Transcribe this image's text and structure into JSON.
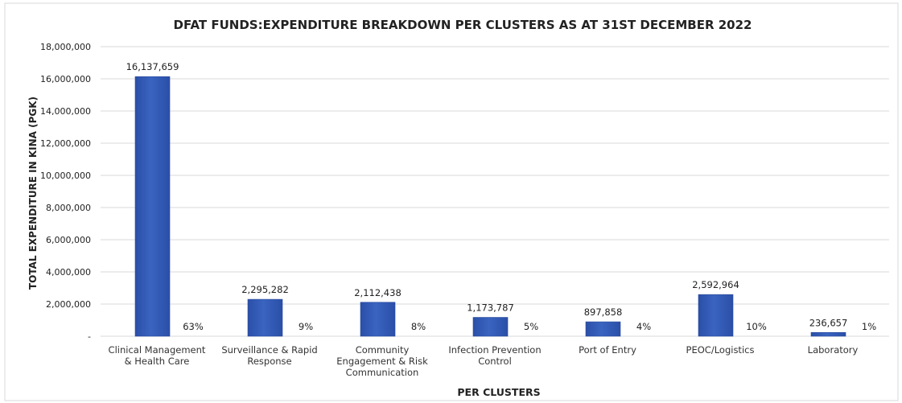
{
  "chart_data": {
    "type": "bar",
    "title": "DFAT FUNDS:EXPENDITURE BREAKDOWN PER CLUSTERS AS AT 31ST DECEMBER 2022",
    "x_label": "PER CLUSTERS",
    "y_label": "TOTAL EXPENDITURE IN KINA (PGK)",
    "categories": [
      "Clinical Management & Health Care",
      "Surveillance & Rapid Response",
      "Community Engagement & Risk Communication",
      "Infection Prevention Control",
      "Port of Entry",
      "PEOC/Logistics",
      "Laboratory"
    ],
    "values": [
      16137659,
      2295282,
      2112438,
      1173787,
      897858,
      2592964,
      236657
    ],
    "value_labels": [
      "16,137,659",
      "2,295,282",
      "2,112,438",
      "1,173,787",
      "897,858",
      "2,592,964",
      "236,657"
    ],
    "shares": [
      {
        "value": 63,
        "label": "63%"
      },
      {
        "value": 9,
        "label": "9%"
      },
      {
        "value": 8,
        "label": "8%"
      },
      {
        "value": 5,
        "label": "5%"
      },
      {
        "value": 4,
        "label": "4%"
      },
      {
        "value": 10,
        "label": "10%"
      },
      {
        "value": 1,
        "label": "1%"
      }
    ],
    "color": "#3a64c0",
    "ylim": [
      0,
      18000000
    ],
    "yticks": [
      {
        "value": 0,
        "label": "-"
      },
      {
        "value": 2000000,
        "label": "2,000,000"
      },
      {
        "value": 4000000,
        "label": "4,000,000"
      },
      {
        "value": 6000000,
        "label": "6,000,000"
      },
      {
        "value": 8000000,
        "label": "8,000,000"
      },
      {
        "value": 10000000,
        "label": "10,000,000"
      },
      {
        "value": 12000000,
        "label": "12,000,000"
      },
      {
        "value": 14000000,
        "label": "14,000,000"
      },
      {
        "value": 16000000,
        "label": "16,000,000"
      },
      {
        "value": 18000000,
        "label": "18,000,000"
      }
    ],
    "grid": true
  }
}
